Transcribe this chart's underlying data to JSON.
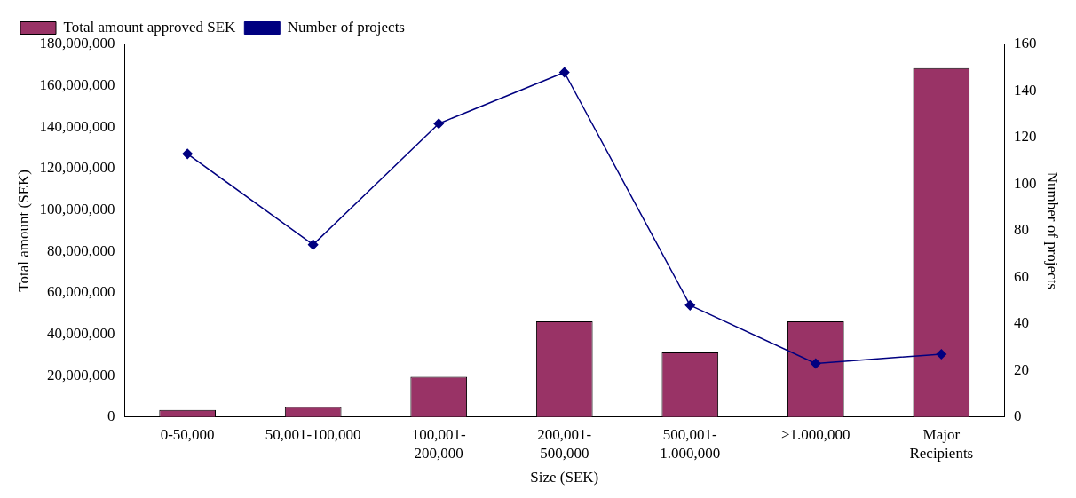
{
  "chart_data": {
    "type": "bar",
    "xlabel": "Size (SEK)",
    "ylabel": "Total amount (SEK)",
    "y2label": "Number of projects",
    "categories": [
      "0-50,000",
      "50,001-100,000",
      "100,001-\n200,000",
      "200,001-\n500,000",
      "500,001-\n1.000,000",
      ">1.000,000",
      "Major\nRecipients"
    ],
    "series": [
      {
        "name": "Total amount approved SEK",
        "color": "#993366",
        "values": [
          3500000,
          4800000,
          19400000,
          46200000,
          31200000,
          46200000,
          168500000
        ]
      },
      {
        "name": "Number of projects",
        "type": "line",
        "axis": "y2",
        "color": "#000080",
        "values": [
          113,
          74,
          126,
          148,
          48,
          23,
          27
        ]
      }
    ],
    "ylim": [
      0,
      180000000
    ],
    "yticks": [
      {
        "value": 0,
        "label": "0"
      },
      {
        "value": 20000000,
        "label": "20,000,000"
      },
      {
        "value": 40000000,
        "label": "40,000,000"
      },
      {
        "value": 60000000,
        "label": "60,000,000"
      },
      {
        "value": 80000000,
        "label": "80,000,000"
      },
      {
        "value": 100000000,
        "label": "100,000,000"
      },
      {
        "value": 120000000,
        "label": "120,000,000"
      },
      {
        "value": 140000000,
        "label": "140,000,000"
      },
      {
        "value": 160000000,
        "label": "160,000,000"
      },
      {
        "value": 180000000,
        "label": "180,000,000"
      }
    ],
    "y2lim": [
      0,
      160
    ],
    "y2ticks": [
      0,
      20,
      40,
      60,
      80,
      100,
      120,
      140,
      160
    ],
    "legend": "top left",
    "marker": "diamond",
    "grid": false
  }
}
